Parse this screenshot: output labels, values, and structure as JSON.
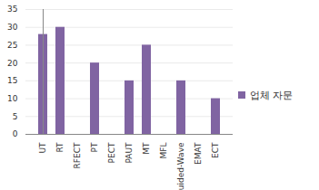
{
  "chart_data": {
    "type": "bar",
    "categories": [
      "UT",
      "RT",
      "RFECT",
      "PT",
      "PECT",
      "PAUT",
      "MT",
      "MFL",
      "Guided-Wave",
      "EMAT",
      "ECT"
    ],
    "series": [
      {
        "name": "업체 자문",
        "color": "#8064a2",
        "values": [
          28,
          30,
          0,
          20,
          0,
          15,
          25,
          0,
          15,
          0,
          10
        ]
      }
    ],
    "ylim": [
      0,
      35
    ],
    "yticks": [
      0,
      5,
      10,
      15,
      20,
      25,
      30,
      35
    ],
    "grid": true,
    "legend": "right"
  }
}
